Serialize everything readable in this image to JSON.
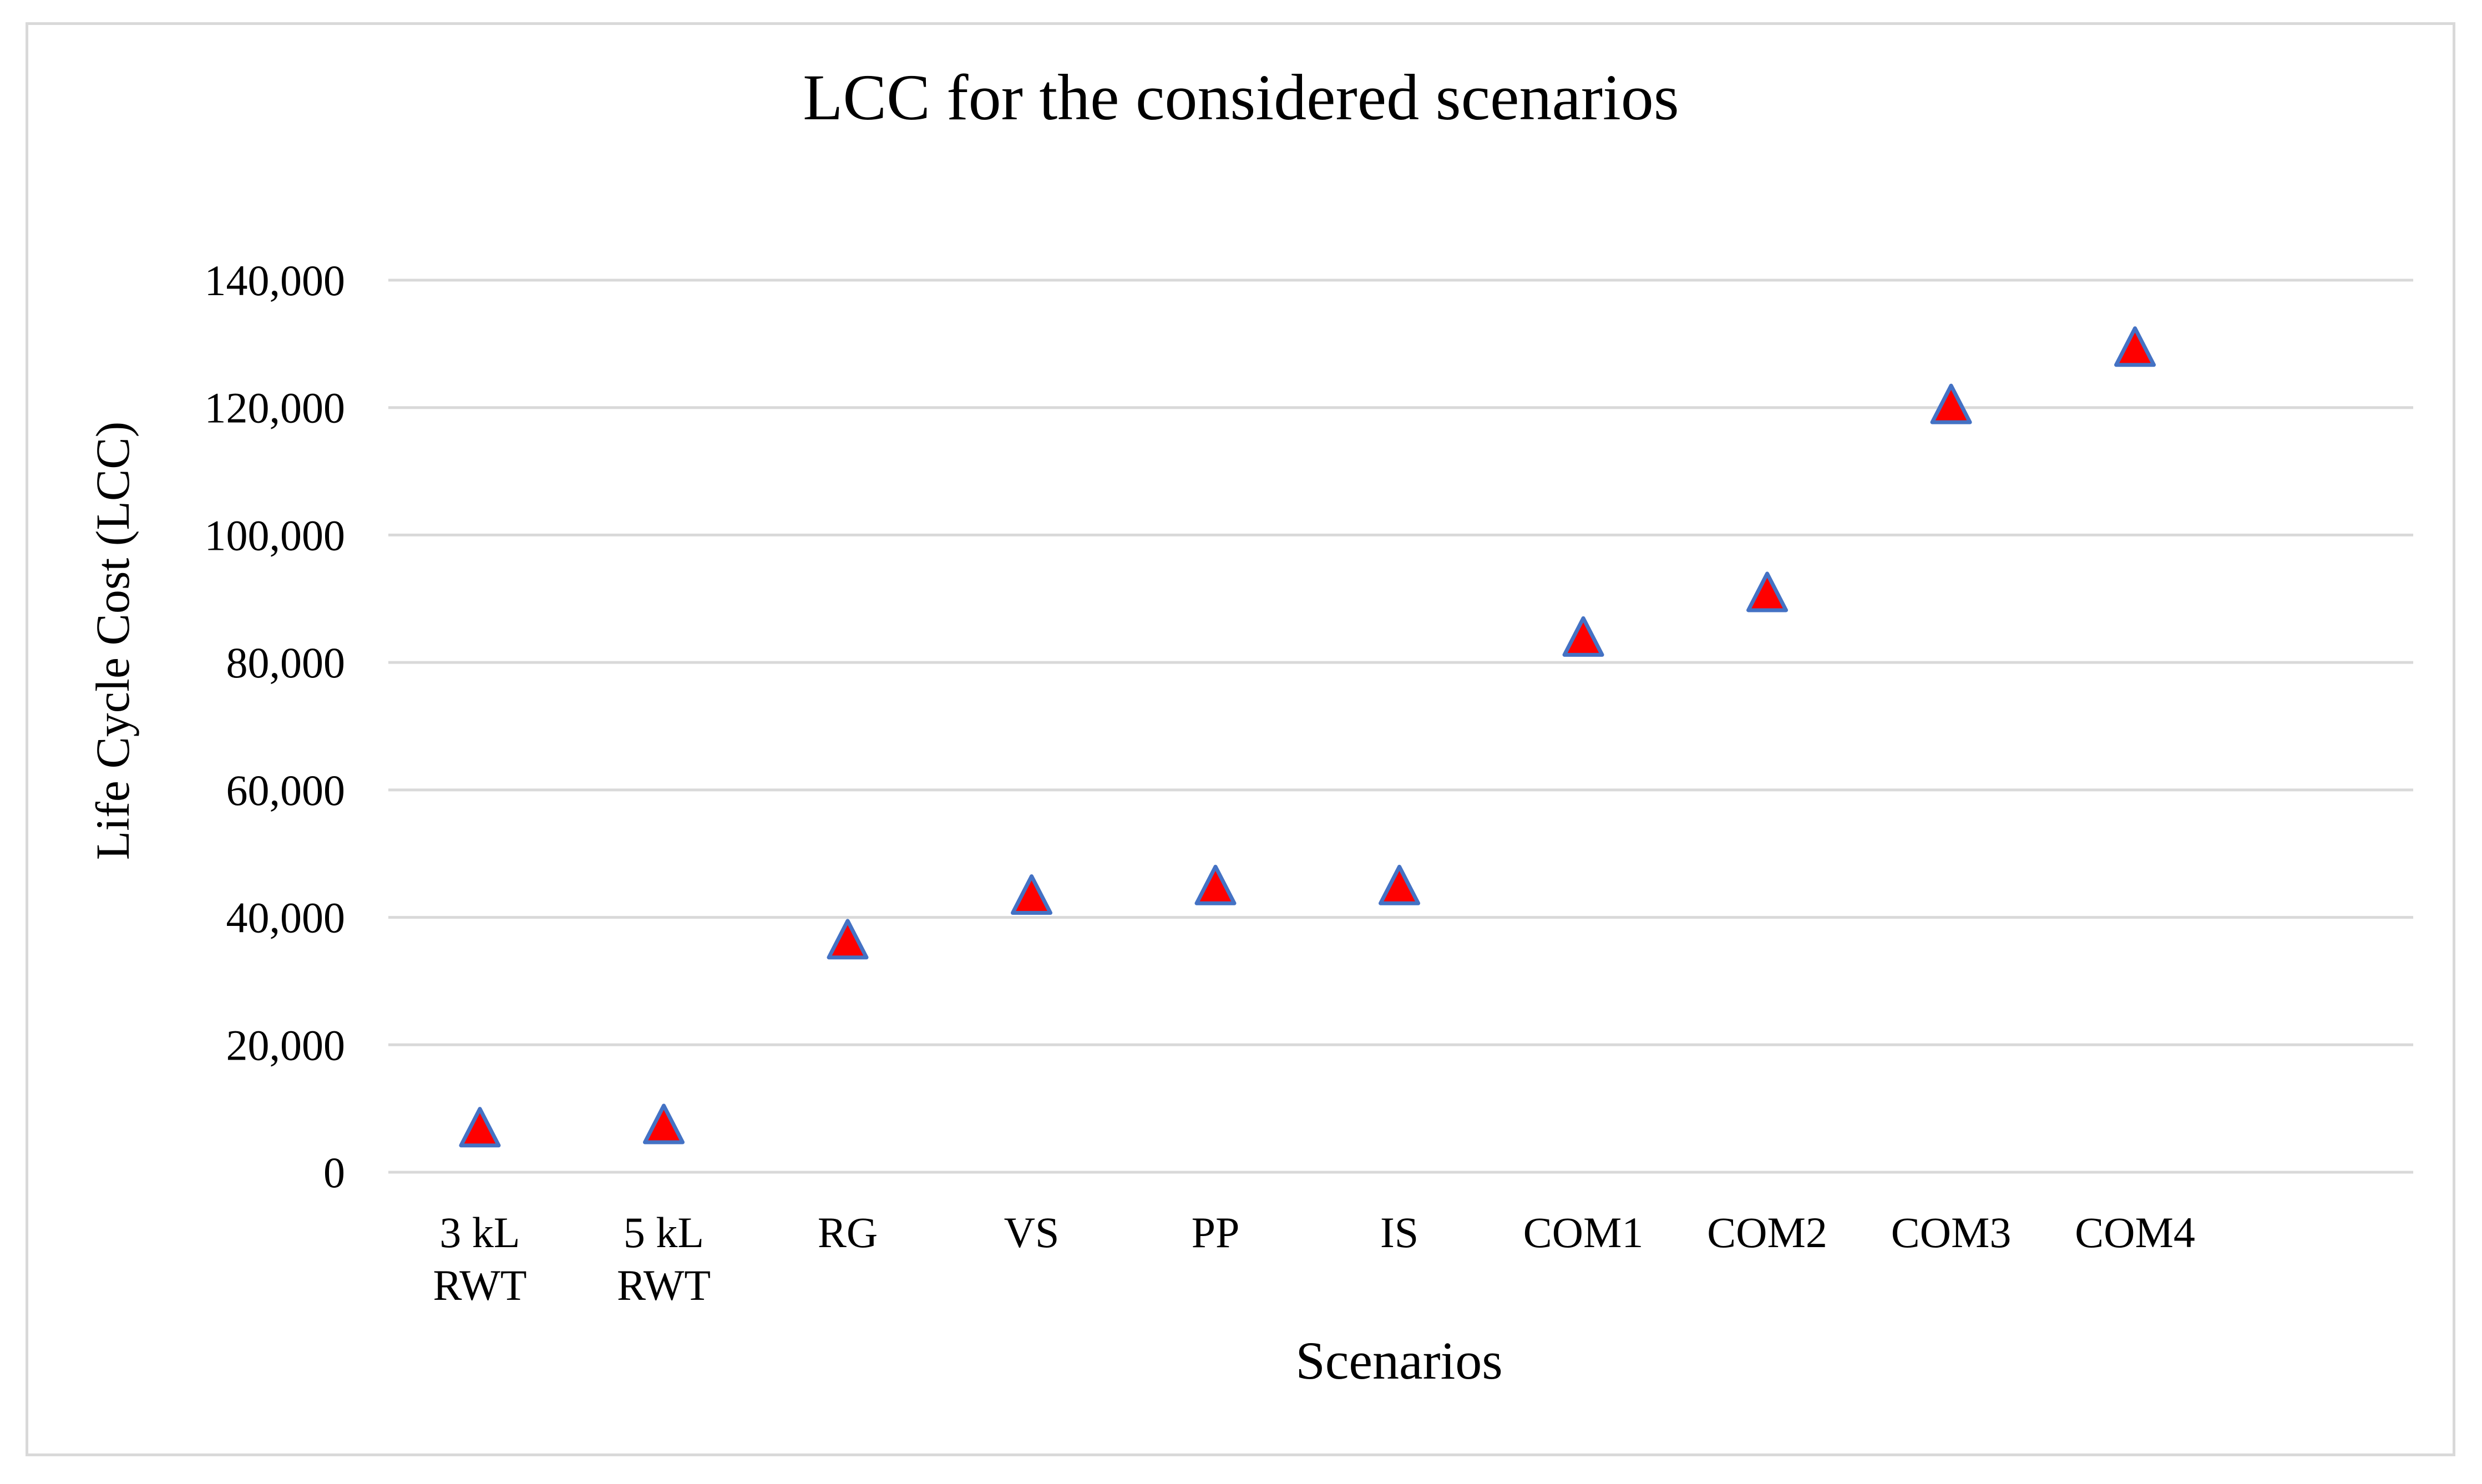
{
  "chart_data": {
    "type": "scatter",
    "title": "LCC for the considered scenarios",
    "xlabel": "Scenarios",
    "ylabel": "Life Cycle Cost (LCC)",
    "categories": [
      [
        "3 kL",
        "RWT"
      ],
      [
        "5 kL",
        "RWT"
      ],
      [
        "RG"
      ],
      [
        "VS"
      ],
      [
        "PP"
      ],
      [
        "IS"
      ],
      [
        "COM1"
      ],
      [
        "COM2"
      ],
      [
        "COM3"
      ],
      [
        "COM4"
      ]
    ],
    "values": [
      6500,
      7000,
      36000,
      43000,
      44500,
      44500,
      83500,
      90500,
      120000,
      129000
    ],
    "ylim": [
      0,
      140000
    ],
    "yticks": [
      0,
      20000,
      40000,
      60000,
      80000,
      100000,
      120000,
      140000
    ],
    "ytick_labels": [
      "0",
      "20,000",
      "40,000",
      "60,000",
      "80,000",
      "100,000",
      "120,000",
      "140,000"
    ],
    "grid": true,
    "marker": "triangle",
    "colors": {
      "marker_fill": "#ff0000",
      "marker_edge": "#4472c4",
      "grid": "#d9d9d9",
      "frame": "#d9d9d9"
    }
  }
}
